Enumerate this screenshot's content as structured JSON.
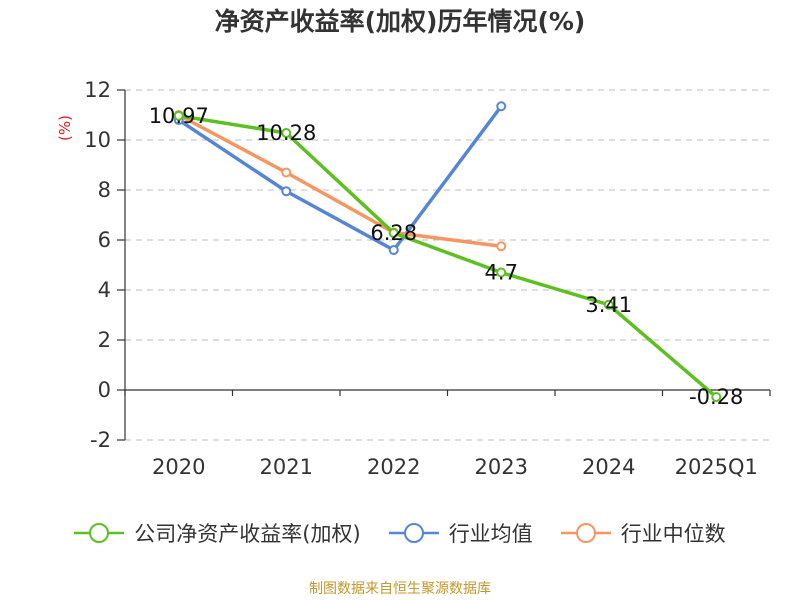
{
  "title": "净资产收益率(加权)历年情况(%)",
  "source": "制图数据来自恒生聚源数据库",
  "chart_data": {
    "type": "line",
    "categories": [
      "2020",
      "2021",
      "2022",
      "2023",
      "2024",
      "2025Q1"
    ],
    "ylabel": "(%)",
    "ylim": [
      -2,
      12
    ],
    "yticks": [
      -2,
      0,
      2,
      4,
      6,
      8,
      10,
      12
    ],
    "grid": "horizontal-dashed",
    "legend_position": "bottom",
    "series": [
      {
        "name": "公司净资产收益率(加权)",
        "color": "#5cc020",
        "values": [
          10.97,
          10.28,
          6.28,
          4.7,
          3.41,
          -0.28
        ],
        "labels": [
          "10.97",
          "10.28",
          "6.28",
          "4.7",
          "3.41",
          "-0.28"
        ]
      },
      {
        "name": "行业均值",
        "color": "#5585d6",
        "values": [
          10.8,
          7.95,
          5.6,
          11.35,
          null,
          null
        ]
      },
      {
        "name": "行业中位数",
        "color": "#f79660",
        "values": [
          11.0,
          8.7,
          6.3,
          5.75,
          null,
          null
        ]
      }
    ]
  }
}
